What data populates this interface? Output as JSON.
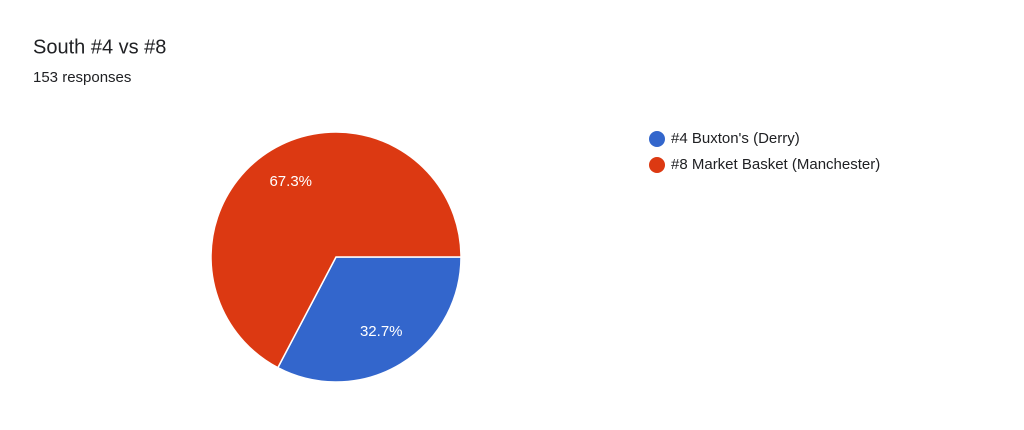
{
  "chart_data": {
    "type": "pie",
    "title": "South #4 vs #8",
    "subtitle": "153 responses",
    "categories": [
      "#4 Buxton's (Derry)",
      "#8 Market Basket (Manchester)"
    ],
    "values": [
      32.7,
      67.3
    ],
    "value_labels": [
      "32.7%",
      "67.3%"
    ],
    "colors": [
      "#3366cc",
      "#dc3912"
    ],
    "legend": "right"
  }
}
